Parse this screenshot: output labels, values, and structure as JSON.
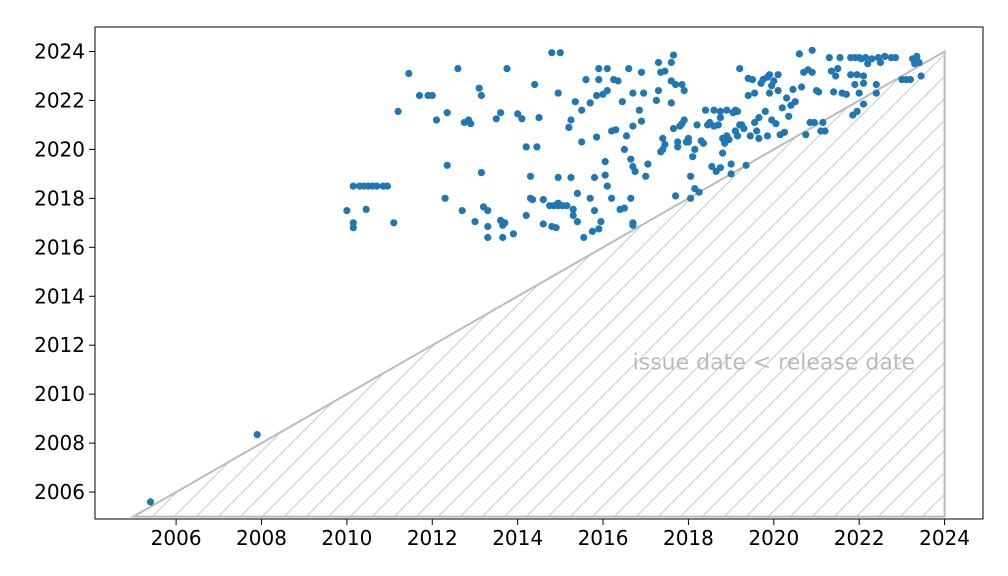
{
  "chart_data": {
    "type": "scatter",
    "title": "",
    "xlabel": "",
    "ylabel": "",
    "xlim": [
      2004.1,
      2024.9
    ],
    "ylim": [
      2004.9,
      2025.0
    ],
    "xticks": [
      "2006",
      "2008",
      "2010",
      "2012",
      "2014",
      "2016",
      "2018",
      "2020",
      "2022",
      "2024"
    ],
    "yticks": [
      "2006",
      "2008",
      "2010",
      "2012",
      "2014",
      "2016",
      "2018",
      "2020",
      "2022",
      "2024"
    ],
    "grid": false,
    "point_color": "#1f77b4",
    "region_color": "#bbbbbb",
    "region": {
      "label": "issue date < release date",
      "vertices": [
        [
          2005,
          2005
        ],
        [
          2024,
          2024
        ],
        [
          2024,
          2005
        ]
      ],
      "hatch": "diagonal"
    },
    "points": [
      [
        2005.4,
        2005.6
      ],
      [
        2007.9,
        2008.35
      ],
      [
        2010.0,
        2017.5
      ],
      [
        2010.15,
        2017.0
      ],
      [
        2010.15,
        2016.8
      ],
      [
        2010.15,
        2018.5
      ],
      [
        2010.3,
        2018.5
      ],
      [
        2010.4,
        2018.5
      ],
      [
        2010.45,
        2017.55
      ],
      [
        2010.5,
        2018.5
      ],
      [
        2010.6,
        2018.5
      ],
      [
        2010.7,
        2018.5
      ],
      [
        2010.85,
        2018.5
      ],
      [
        2010.95,
        2018.5
      ],
      [
        2011.1,
        2017.0
      ],
      [
        2011.2,
        2021.55
      ],
      [
        2011.45,
        2023.1
      ],
      [
        2011.7,
        2022.2
      ],
      [
        2011.9,
        2022.2
      ],
      [
        2012.0,
        2022.2
      ],
      [
        2012.1,
        2021.2
      ],
      [
        2012.35,
        2021.5
      ],
      [
        2012.3,
        2018.0
      ],
      [
        2012.35,
        2019.35
      ],
      [
        2012.6,
        2023.3
      ],
      [
        2012.7,
        2017.5
      ],
      [
        2012.75,
        2021.1
      ],
      [
        2012.85,
        2021.2
      ],
      [
        2012.9,
        2021.05
      ],
      [
        2013.0,
        2017.05
      ],
      [
        2013.1,
        2022.5
      ],
      [
        2013.15,
        2022.2
      ],
      [
        2013.15,
        2019.05
      ],
      [
        2013.2,
        2017.65
      ],
      [
        2013.3,
        2017.5
      ],
      [
        2013.3,
        2016.85
      ],
      [
        2013.3,
        2016.4
      ],
      [
        2013.5,
        2021.25
      ],
      [
        2013.6,
        2021.5
      ],
      [
        2013.6,
        2017.1
      ],
      [
        2013.65,
        2016.9
      ],
      [
        2013.65,
        2016.4
      ],
      [
        2013.7,
        2017.0
      ],
      [
        2013.75,
        2023.3
      ],
      [
        2013.9,
        2016.55
      ],
      [
        2014.0,
        2021.45
      ],
      [
        2014.1,
        2021.25
      ],
      [
        2014.2,
        2017.3
      ],
      [
        2014.2,
        2020.1
      ],
      [
        2014.3,
        2018.9
      ],
      [
        2014.3,
        2018.0
      ],
      [
        2014.35,
        2017.95
      ],
      [
        2014.4,
        2022.65
      ],
      [
        2014.45,
        2020.1
      ],
      [
        2014.5,
        2021.3
      ],
      [
        2014.6,
        2017.95
      ],
      [
        2014.6,
        2016.95
      ],
      [
        2014.75,
        2017.7
      ],
      [
        2014.8,
        2023.95
      ],
      [
        2014.8,
        2016.85
      ],
      [
        2014.85,
        2017.7
      ],
      [
        2014.9,
        2016.8
      ],
      [
        2014.95,
        2017.8
      ],
      [
        2014.95,
        2017.7
      ],
      [
        2014.95,
        2018.85
      ],
      [
        2014.95,
        2022.3
      ],
      [
        2015.0,
        2023.95
      ],
      [
        2015.05,
        2017.7
      ],
      [
        2015.15,
        2017.7
      ],
      [
        2015.2,
        2020.9
      ],
      [
        2015.25,
        2021.2
      ],
      [
        2015.25,
        2018.85
      ],
      [
        2015.3,
        2017.55
      ],
      [
        2015.3,
        2017.3
      ],
      [
        2015.35,
        2021.95
      ],
      [
        2015.4,
        2018.2
      ],
      [
        2015.4,
        2017.05
      ],
      [
        2015.5,
        2020.3
      ],
      [
        2015.5,
        2021.6
      ],
      [
        2015.55,
        2016.4
      ],
      [
        2015.6,
        2022.85
      ],
      [
        2015.7,
        2021.9
      ],
      [
        2015.7,
        2018.0
      ],
      [
        2015.75,
        2016.65
      ],
      [
        2015.8,
        2017.5
      ],
      [
        2015.8,
        2018.85
      ],
      [
        2015.85,
        2020.5
      ],
      [
        2015.85,
        2022.2
      ],
      [
        2015.9,
        2022.85
      ],
      [
        2015.9,
        2023.3
      ],
      [
        2015.9,
        2016.75
      ],
      [
        2015.95,
        2017.05
      ],
      [
        2016.0,
        2022.25
      ],
      [
        2016.05,
        2019.5
      ],
      [
        2016.05,
        2018.95
      ],
      [
        2016.1,
        2023.3
      ],
      [
        2016.1,
        2018.5
      ],
      [
        2016.1,
        2022.4
      ],
      [
        2016.2,
        2018.0
      ],
      [
        2016.2,
        2020.75
      ],
      [
        2016.25,
        2022.85
      ],
      [
        2016.3,
        2020.8
      ],
      [
        2016.35,
        2022.8
      ],
      [
        2016.4,
        2017.55
      ],
      [
        2016.45,
        2021.95
      ],
      [
        2016.5,
        2020.0
      ],
      [
        2016.5,
        2017.6
      ],
      [
        2016.55,
        2020.55
      ],
      [
        2016.6,
        2023.3
      ],
      [
        2016.65,
        2018.0
      ],
      [
        2016.65,
        2019.6
      ],
      [
        2016.7,
        2019.3
      ],
      [
        2016.7,
        2022.3
      ],
      [
        2016.7,
        2020.95
      ],
      [
        2016.7,
        2017.0
      ],
      [
        2016.7,
        2016.9
      ],
      [
        2016.75,
        2019.1
      ],
      [
        2016.85,
        2021.6
      ],
      [
        2016.9,
        2021.15
      ],
      [
        2016.9,
        2023.15
      ],
      [
        2016.95,
        2022.3
      ],
      [
        2017.0,
        2018.9
      ],
      [
        2017.05,
        2019.4
      ],
      [
        2017.25,
        2022.0
      ],
      [
        2017.3,
        2022.4
      ],
      [
        2017.3,
        2023.55
      ],
      [
        2017.35,
        2023.15
      ],
      [
        2017.35,
        2019.9
      ],
      [
        2017.4,
        2020.0
      ],
      [
        2017.4,
        2020.45
      ],
      [
        2017.45,
        2020.2
      ],
      [
        2017.45,
        2023.2
      ],
      [
        2017.6,
        2023.55
      ],
      [
        2017.6,
        2021.9
      ],
      [
        2017.6,
        2022.8
      ],
      [
        2017.65,
        2023.85
      ],
      [
        2017.65,
        2020.85
      ],
      [
        2017.7,
        2018.1
      ],
      [
        2017.7,
        2022.65
      ],
      [
        2017.75,
        2020.3
      ],
      [
        2017.75,
        2020.1
      ],
      [
        2017.8,
        2020.95
      ],
      [
        2017.85,
        2021.05
      ],
      [
        2017.85,
        2022.65
      ],
      [
        2017.9,
        2021.2
      ],
      [
        2017.9,
        2022.4
      ],
      [
        2017.95,
        2020.3
      ],
      [
        2018.0,
        2020.45
      ],
      [
        2018.0,
        2020.3
      ],
      [
        2018.05,
        2018.0
      ],
      [
        2018.05,
        2018.9
      ],
      [
        2018.1,
        2019.7
      ],
      [
        2018.15,
        2018.4
      ],
      [
        2018.15,
        2020.0
      ],
      [
        2018.2,
        2021.0
      ],
      [
        2018.25,
        2018.25
      ],
      [
        2018.3,
        2020.35
      ],
      [
        2018.35,
        2020.25
      ],
      [
        2018.4,
        2021.6
      ],
      [
        2018.45,
        2021.0
      ],
      [
        2018.5,
        2021.1
      ],
      [
        2018.55,
        2019.3
      ],
      [
        2018.6,
        2021.6
      ],
      [
        2018.6,
        2020.95
      ],
      [
        2018.65,
        2019.1
      ],
      [
        2018.7,
        2021.0
      ],
      [
        2018.75,
        2021.55
      ],
      [
        2018.75,
        2021.3
      ],
      [
        2018.75,
        2019.25
      ],
      [
        2018.8,
        2020.45
      ],
      [
        2018.8,
        2019.85
      ],
      [
        2018.85,
        2020.25
      ],
      [
        2018.9,
        2020.55
      ],
      [
        2018.9,
        2021.6
      ],
      [
        2018.95,
        2020.4
      ],
      [
        2019.0,
        2019.4
      ],
      [
        2019.0,
        2019.0
      ],
      [
        2019.05,
        2021.5
      ],
      [
        2019.1,
        2020.75
      ],
      [
        2019.1,
        2021.6
      ],
      [
        2019.15,
        2021.55
      ],
      [
        2019.15,
        2020.55
      ],
      [
        2019.2,
        2021.0
      ],
      [
        2019.2,
        2023.3
      ],
      [
        2019.25,
        2021.0
      ],
      [
        2019.3,
        2020.85
      ],
      [
        2019.35,
        2019.35
      ],
      [
        2019.4,
        2022.9
      ],
      [
        2019.4,
        2022.2
      ],
      [
        2019.45,
        2020.55
      ],
      [
        2019.5,
        2022.85
      ],
      [
        2019.55,
        2022.3
      ],
      [
        2019.55,
        2021.1
      ],
      [
        2019.6,
        2020.75
      ],
      [
        2019.65,
        2021.3
      ],
      [
        2019.65,
        2020.45
      ],
      [
        2019.7,
        2022.7
      ],
      [
        2019.75,
        2022.85
      ],
      [
        2019.8,
        2021.55
      ],
      [
        2019.85,
        2020.55
      ],
      [
        2019.85,
        2022.95
      ],
      [
        2019.9,
        2022.3
      ],
      [
        2019.9,
        2023.05
      ],
      [
        2019.95,
        2022.6
      ],
      [
        2019.95,
        2021.2
      ],
      [
        2020.0,
        2022.8
      ],
      [
        2020.05,
        2021.05
      ],
      [
        2020.1,
        2022.4
      ],
      [
        2020.1,
        2023.05
      ],
      [
        2020.15,
        2020.6
      ],
      [
        2020.2,
        2021.7
      ],
      [
        2020.25,
        2020.7
      ],
      [
        2020.3,
        2022.1
      ],
      [
        2020.35,
        2021.35
      ],
      [
        2020.4,
        2021.8
      ],
      [
        2020.45,
        2022.45
      ],
      [
        2020.5,
        2021.95
      ],
      [
        2020.6,
        2023.9
      ],
      [
        2020.65,
        2022.55
      ],
      [
        2020.7,
        2023.15
      ],
      [
        2020.75,
        2020.6
      ],
      [
        2020.8,
        2023.25
      ],
      [
        2020.85,
        2021.1
      ],
      [
        2020.9,
        2023.15
      ],
      [
        2020.9,
        2024.05
      ],
      [
        2020.95,
        2021.1
      ],
      [
        2021.0,
        2022.4
      ],
      [
        2021.05,
        2022.35
      ],
      [
        2021.1,
        2020.75
      ],
      [
        2021.15,
        2021.1
      ],
      [
        2021.2,
        2020.75
      ],
      [
        2021.3,
        2023.75
      ],
      [
        2021.35,
        2023.2
      ],
      [
        2021.4,
        2022.35
      ],
      [
        2021.45,
        2023.0
      ],
      [
        2021.5,
        2023.3
      ],
      [
        2021.55,
        2023.75
      ],
      [
        2021.6,
        2022.3
      ],
      [
        2021.7,
        2022.25
      ],
      [
        2021.8,
        2023.75
      ],
      [
        2021.8,
        2023.05
      ],
      [
        2021.85,
        2021.4
      ],
      [
        2021.9,
        2023.75
      ],
      [
        2021.9,
        2022.65
      ],
      [
        2021.95,
        2021.55
      ],
      [
        2021.95,
        2023.05
      ],
      [
        2022.0,
        2023.75
      ],
      [
        2022.0,
        2022.3
      ],
      [
        2022.05,
        2023.7
      ],
      [
        2022.1,
        2023.0
      ],
      [
        2022.1,
        2022.7
      ],
      [
        2022.1,
        2021.85
      ],
      [
        2022.15,
        2023.75
      ],
      [
        2022.2,
        2023.5
      ],
      [
        2022.3,
        2023.7
      ],
      [
        2022.4,
        2022.65
      ],
      [
        2022.4,
        2022.3
      ],
      [
        2022.45,
        2023.75
      ],
      [
        2022.5,
        2023.55
      ],
      [
        2022.6,
        2023.8
      ],
      [
        2022.75,
        2023.75
      ],
      [
        2022.85,
        2023.75
      ],
      [
        2023.0,
        2022.85
      ],
      [
        2023.1,
        2022.85
      ],
      [
        2023.2,
        2022.85
      ],
      [
        2023.25,
        2023.7
      ],
      [
        2023.3,
        2023.5
      ],
      [
        2023.35,
        2023.8
      ],
      [
        2023.4,
        2023.55
      ],
      [
        2023.45,
        2023.0
      ]
    ]
  }
}
